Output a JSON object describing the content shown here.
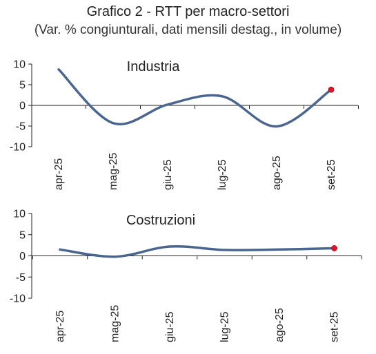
{
  "title": "Grafico 2 - RTT per macro-settori",
  "subtitle": "(Var. % congiunturali, dati mensili destag., in volume)",
  "colors": {
    "line": "#4a6690",
    "marker": "#e8102a",
    "axis": "#222222"
  },
  "chart_data": [
    {
      "type": "line",
      "title": "Industria",
      "categories": [
        "apr-25",
        "mag-25",
        "giu-25",
        "lug-25",
        "ago-25",
        "set-25"
      ],
      "series": [
        {
          "values": [
            8.7,
            -4.3,
            0.2,
            2.2,
            -5.1,
            3.8
          ]
        }
      ],
      "ylim": [
        -10,
        10
      ],
      "yticks": [
        "10",
        "5",
        "0",
        "-5",
        "-10"
      ],
      "last_point_marker": true
    },
    {
      "type": "line",
      "title": "Costruzioni",
      "categories": [
        "apr-25",
        "mag-25",
        "giu-25",
        "lug-25",
        "ago-25",
        "set-25"
      ],
      "series": [
        {
          "values": [
            1.5,
            -0.2,
            2.2,
            1.4,
            1.5,
            1.8
          ]
        }
      ],
      "ylim": [
        -10,
        10
      ],
      "yticks": [
        "10",
        "5",
        "0",
        "-5",
        "-10"
      ],
      "last_point_marker": true
    }
  ]
}
